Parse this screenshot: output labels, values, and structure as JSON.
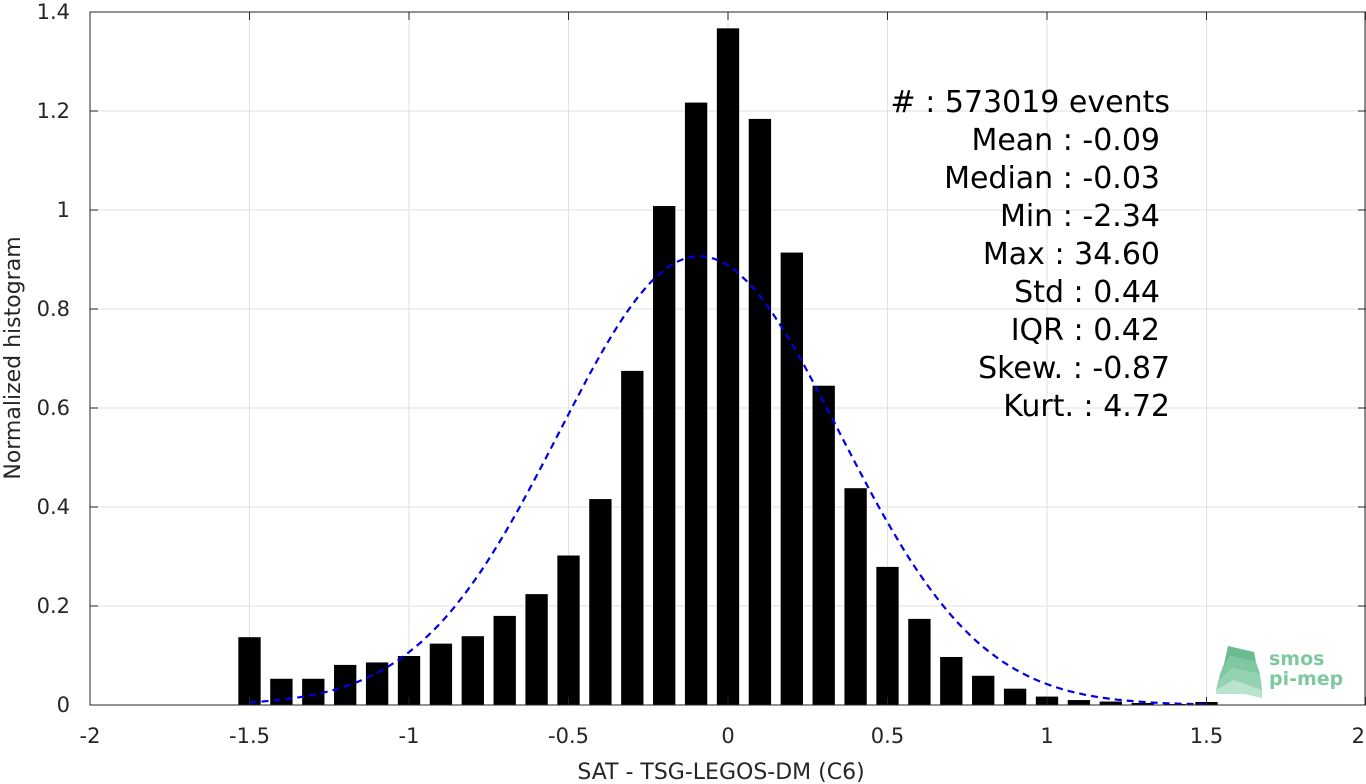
{
  "chart_data": {
    "type": "bar",
    "xlabel": "SAT - TSG-LEGOS-DM (C6)",
    "ylabel": "Normalized histogram",
    "xlim": [
      -2,
      2
    ],
    "ylim": [
      0,
      1.4
    ],
    "xticks": [
      -2,
      -1.5,
      -1,
      -0.5,
      0,
      0.5,
      1,
      1.5,
      2
    ],
    "xtick_labels": [
      "-2",
      "-1.5",
      "-1",
      "-0.5",
      "0",
      "0.5",
      "1",
      "1.5",
      "2"
    ],
    "yticks": [
      0,
      0.2,
      0.4,
      0.6,
      0.8,
      1,
      1.2,
      1.4
    ],
    "ytick_labels": [
      "0",
      "0.2",
      "0.4",
      "0.6",
      "0.8",
      "1",
      "1.2",
      "1.4"
    ],
    "grid": true,
    "bar_width": 0.07,
    "bar_color": "#000000",
    "bars": {
      "x": [
        -1.5,
        -1.4,
        -1.3,
        -1.2,
        -1.1,
        -1.0,
        -0.9,
        -0.8,
        -0.7,
        -0.6,
        -0.5,
        -0.4,
        -0.3,
        -0.2,
        -0.1,
        0.0,
        0.1,
        0.2,
        0.3,
        0.4,
        0.5,
        0.6,
        0.7,
        0.8,
        0.9,
        1.0,
        1.1,
        1.2,
        1.3,
        1.4,
        1.5
      ],
      "y": [
        0.137,
        0.053,
        0.053,
        0.081,
        0.086,
        0.099,
        0.124,
        0.139,
        0.18,
        0.224,
        0.302,
        0.416,
        0.675,
        1.008,
        1.217,
        1.367,
        1.184,
        0.914,
        0.645,
        0.438,
        0.279,
        0.174,
        0.097,
        0.059,
        0.033,
        0.017,
        0.01,
        0.007,
        0.004,
        0.002,
        0.006
      ]
    },
    "series": [
      {
        "type": "gaussian-fit",
        "mean": -0.09,
        "std": 0.44,
        "x_range": [
          -1.5,
          1.5
        ],
        "color": "#0000e6",
        "line_style": "dashed"
      }
    ],
    "annotations": [
      "#  : 573019 events",
      "Mean : -0.09",
      "Median : -0.03",
      "Min : -2.34",
      "Max : 34.60",
      "Std : 0.44",
      "IQR : 0.42",
      "Skew. : -0.87",
      "Kurt. : 4.72"
    ]
  },
  "logo": {
    "line1": "smos",
    "line2": "pi-mep",
    "color": "#7fc8a0"
  }
}
